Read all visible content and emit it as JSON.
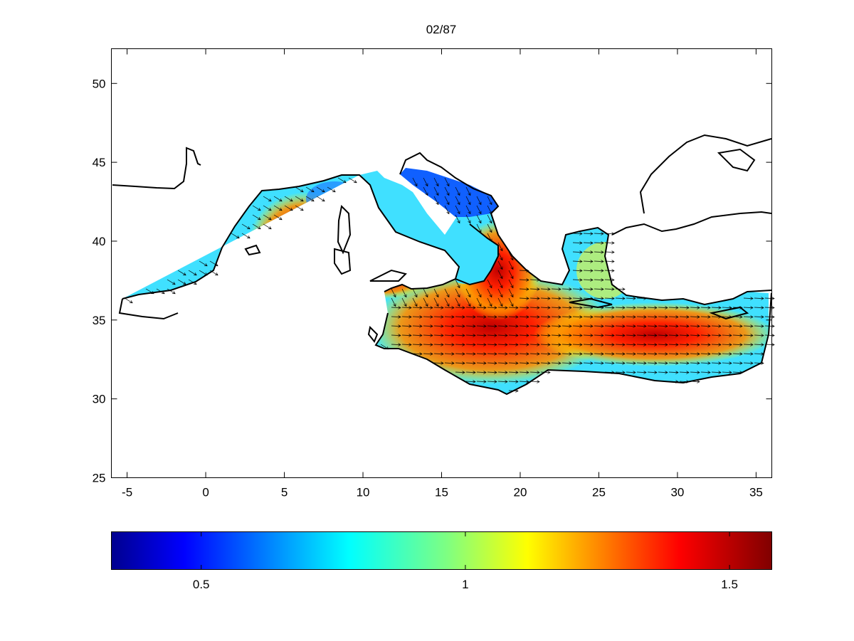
{
  "figure": {
    "title": "02/87"
  },
  "map": {
    "region": "Mediterranean Sea",
    "x_ticks": [
      "-5",
      "0",
      "5",
      "10",
      "15",
      "20",
      "25",
      "30",
      "35"
    ],
    "y_ticks": [
      "50",
      "45",
      "40",
      "35",
      "30",
      "25"
    ],
    "xlim": [
      -6,
      36
    ],
    "ylim": [
      25,
      52.2
    ],
    "field": "colour-shaded scalar field over the sea with vector arrows",
    "colormap": "jet"
  },
  "colorbar": {
    "ticks": [
      "0.5",
      "1",
      "1.5"
    ],
    "range": [
      0.33,
      1.58
    ],
    "colors": [
      "#00008f",
      "#0000ff",
      "#0080ff",
      "#00ffff",
      "#80ff80",
      "#ffff00",
      "#ff8000",
      "#ff0000",
      "#800000"
    ]
  },
  "chart_data": {
    "type": "heatmap",
    "title": "02/87",
    "xlabel": "",
    "ylabel": "",
    "xlim": [
      -6,
      36
    ],
    "ylim": [
      25,
      52.2
    ],
    "grid": false,
    "colorbar_ticks": [
      0.5,
      1,
      1.5
    ],
    "colorbar_range": [
      0.33,
      1.58
    ]
  }
}
